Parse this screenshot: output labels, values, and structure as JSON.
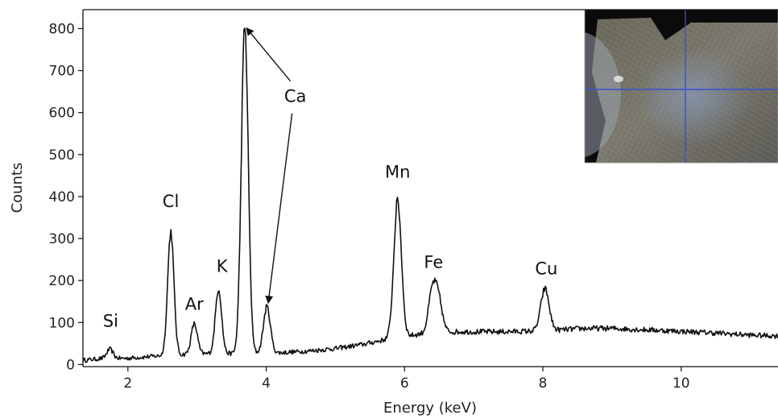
{
  "chart_data": {
    "type": "line",
    "title": "",
    "xlabel": "Energy (keV)",
    "ylabel": "Counts",
    "xlim": [
      1.35,
      11.4
    ],
    "ylim": [
      -5,
      845
    ],
    "xticks": [
      2,
      4,
      6,
      8,
      10
    ],
    "yticks": [
      0,
      100,
      200,
      300,
      400,
      500,
      600,
      700,
      800
    ],
    "grid": false,
    "series": [
      {
        "background": [
          [
            1.35,
            10
          ],
          [
            1.6,
            14
          ],
          [
            2.0,
            15
          ],
          [
            2.4,
            20
          ],
          [
            2.8,
            24
          ],
          [
            3.2,
            26
          ],
          [
            3.6,
            26
          ],
          [
            4.2,
            28
          ],
          [
            4.6,
            32
          ],
          [
            5.0,
            38
          ],
          [
            5.4,
            48
          ],
          [
            5.8,
            62
          ],
          [
            6.2,
            72
          ],
          [
            6.6,
            78
          ],
          [
            7.0,
            78
          ],
          [
            7.4,
            78
          ],
          [
            8.0,
            80
          ],
          [
            8.6,
            86
          ],
          [
            9.0,
            86
          ],
          [
            9.6,
            82
          ],
          [
            10.4,
            76
          ],
          [
            11.0,
            70
          ],
          [
            11.4,
            68
          ]
        ],
        "peaks": [
          {
            "label": "Si",
            "energy": 1.74,
            "height": 22,
            "width": 0.045
          },
          {
            "label": "Cl",
            "energy": 2.62,
            "height": 295,
            "width": 0.045
          },
          {
            "label": "Ar",
            "energy": 2.96,
            "height": 72,
            "width": 0.045
          },
          {
            "label": "K",
            "energy": 3.31,
            "height": 155,
            "width": 0.045
          },
          {
            "label": "Ca",
            "energy": 3.69,
            "height": 778,
            "width": 0.05
          },
          {
            "label": "Ca",
            "energy": 4.01,
            "height": 110,
            "width": 0.05
          },
          {
            "label": "Mn",
            "energy": 5.9,
            "height": 325,
            "width": 0.055
          },
          {
            "label": "Fe",
            "energy": 6.4,
            "height": 95,
            "width": 0.055
          },
          {
            "label": "Fe",
            "energy": 6.49,
            "height": 75,
            "width": 0.055
          },
          {
            "label": "Cu",
            "energy": 8.03,
            "height": 100,
            "width": 0.06
          }
        ],
        "noise_amplitude": 8,
        "color": "#111111"
      }
    ],
    "annotations": [
      {
        "text": "Si",
        "x": 1.75,
        "y": 90
      },
      {
        "text": "Cl",
        "x": 2.62,
        "y": 375
      },
      {
        "text": "Ar",
        "x": 2.96,
        "y": 130
      },
      {
        "text": "K",
        "x": 3.36,
        "y": 220
      },
      {
        "text": "Ca",
        "x": 4.42,
        "y": 625,
        "arrows_to": [
          [
            3.72,
            800
          ],
          [
            4.03,
            148
          ]
        ]
      },
      {
        "text": "Mn",
        "x": 5.9,
        "y": 445
      },
      {
        "text": "Fe",
        "x": 6.42,
        "y": 230
      },
      {
        "text": "Cu",
        "x": 8.05,
        "y": 215
      }
    ],
    "inset": {
      "type": "micrograph",
      "position": "top-right",
      "crosshair_color": "#3a4fd0"
    }
  }
}
